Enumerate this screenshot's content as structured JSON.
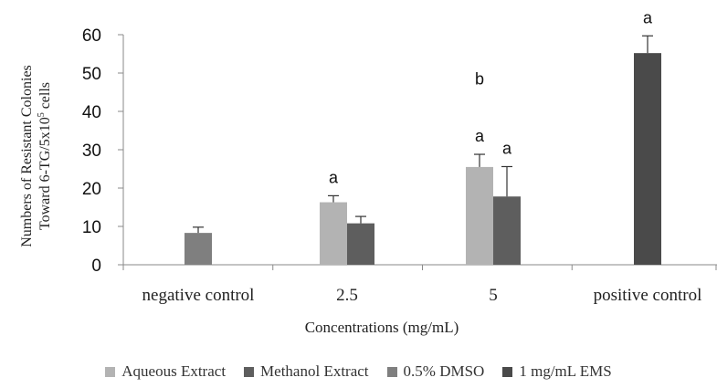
{
  "chart_data": {
    "type": "bar",
    "categories": [
      "negative control",
      "2.5",
      "5",
      "positive control"
    ],
    "xlabel": "Concentrations (mg/mL)",
    "ylabel_line1": "Numbers of Resistant Colonies",
    "ylabel_line2": "Toward 6-TG/5x10",
    "ylabel_sup": "5",
    "ylabel_tail": " cells",
    "ylim": [
      0,
      60
    ],
    "yticks": [
      0,
      10,
      20,
      30,
      40,
      50,
      60
    ],
    "grid": false,
    "legend_position": "bottom",
    "series": [
      {
        "name": "Aqueous Extract",
        "color": "#b3b3b3",
        "values": [
          null,
          16.3,
          25.5,
          null
        ],
        "errors": [
          null,
          1.7,
          3.3,
          null
        ],
        "labels": [
          null,
          "a",
          "a",
          null
        ]
      },
      {
        "name": "Methanol Extract",
        "color": "#5e5e5e",
        "values": [
          null,
          10.8,
          17.8,
          null
        ],
        "errors": [
          null,
          1.8,
          7.8,
          null
        ],
        "labels": [
          null,
          null,
          "a",
          null
        ]
      },
      {
        "name": "0.5% DMSO",
        "color": "#7f7f7f",
        "values": [
          8.3,
          null,
          null,
          null
        ],
        "errors": [
          1.5,
          null,
          null,
          null
        ],
        "labels": [
          null,
          null,
          null,
          null
        ]
      },
      {
        "name": "1 mg/mL EMS",
        "color": "#4a4a4a",
        "values": [
          null,
          null,
          null,
          55.2
        ],
        "errors": [
          null,
          null,
          null,
          4.5
        ],
        "labels": [
          null,
          null,
          null,
          "a"
        ]
      }
    ],
    "annotations": [
      {
        "text": "b",
        "category": "5",
        "y": 47
      }
    ]
  }
}
